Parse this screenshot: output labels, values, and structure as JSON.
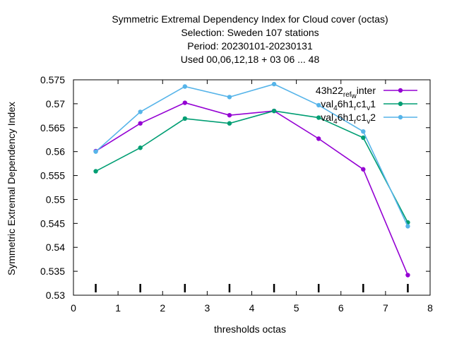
{
  "chart_data": {
    "type": "line",
    "title_lines": [
      "Symmetric Extremal Dependency Index  for Cloud cover (octas)",
      "Selection: Sweden    107 stations",
      "Period: 20230101-20230131",
      "Used  00,06,12,18  + 03 06 ... 48"
    ],
    "xlabel": "thresholds octas",
    "ylabel": "Symmetric Extremal Dependency Index",
    "xlim": [
      0,
      8
    ],
    "ylim": [
      0.53,
      0.575
    ],
    "xticks": [
      "0",
      "1",
      "2",
      "3",
      "4",
      "5",
      "6",
      "7",
      "8"
    ],
    "yticks": [
      "0.53",
      "0.535",
      "0.54",
      "0.545",
      "0.55",
      "0.555",
      "0.56",
      "0.565",
      "0.57",
      "0.575"
    ],
    "x": [
      0.5,
      1.5,
      2.5,
      3.5,
      4.5,
      5.5,
      6.5,
      7.5
    ],
    "legend_position": "top-right",
    "series": [
      {
        "legend_parts": [
          [
            "43h22",
            ""
          ],
          [
            "ref",
            "sub"
          ],
          [
            "w",
            "sub2"
          ],
          [
            "inter",
            ""
          ]
        ],
        "color": "#9400d3",
        "values": [
          0.5601,
          0.5659,
          0.5702,
          0.5676,
          0.5685,
          0.5627,
          0.5563,
          0.5342
        ]
      },
      {
        "legend_parts": [
          [
            "val",
            ""
          ],
          [
            "4",
            "sub"
          ],
          [
            "6h1",
            ""
          ],
          [
            "r",
            "sub"
          ],
          [
            "c1",
            ""
          ],
          [
            "v",
            "sub"
          ],
          [
            "1",
            ""
          ]
        ],
        "color": "#009e73",
        "values": [
          0.5559,
          0.5608,
          0.5669,
          0.5659,
          0.5685,
          0.5671,
          0.5629,
          0.5452
        ]
      },
      {
        "legend_parts": [
          [
            "val",
            ""
          ],
          [
            "4",
            "sub"
          ],
          [
            "6h1",
            ""
          ],
          [
            "r",
            "sub"
          ],
          [
            "c1",
            ""
          ],
          [
            "v",
            "sub"
          ],
          [
            "2",
            ""
          ]
        ],
        "color": "#56b4e9",
        "values": [
          0.56,
          0.5683,
          0.5736,
          0.5714,
          0.5741,
          0.5697,
          0.5642,
          0.5444
        ]
      }
    ]
  }
}
